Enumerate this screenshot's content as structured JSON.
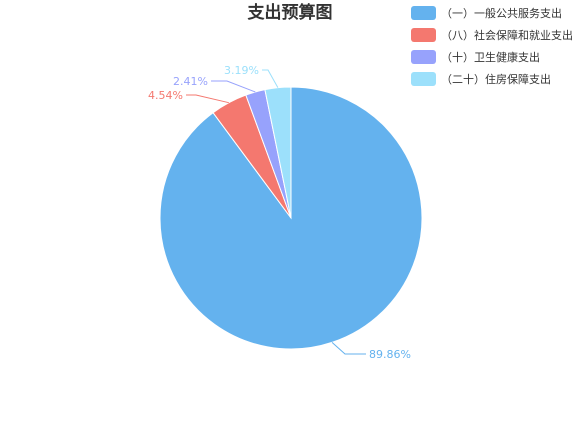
{
  "chart_data": {
    "type": "pie",
    "title": "支出预算图",
    "legend_position": "top-right",
    "slices": [
      {
        "name": "（一）一般公共服务支出",
        "value": 89.86,
        "label": "89.86%",
        "color": "#64b2ee"
      },
      {
        "name": "（八）社会保障和就业支出",
        "value": 4.54,
        "label": "4.54%",
        "color": "#f4786f"
      },
      {
        "name": "（十）卫生健康支出",
        "value": 2.41,
        "label": "2.41%",
        "color": "#97a2fc"
      },
      {
        "name": "（二十）住房保障支出",
        "value": 3.19,
        "label": "3.19%",
        "color": "#9ce0fb"
      }
    ]
  }
}
